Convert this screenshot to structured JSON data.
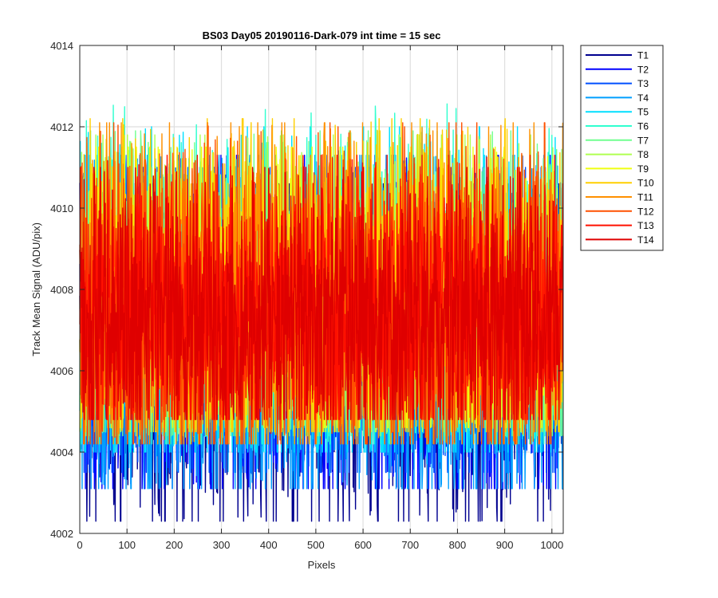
{
  "chart_data": {
    "type": "line",
    "title": "BS03 Day05 20190116-Dark-079 int time = 15 sec",
    "xlabel": "Pixels",
    "ylabel": "Track Mean Signal (ADU/pix)",
    "xlim": [
      0,
      1024
    ],
    "ylim": [
      4002,
      4014
    ],
    "x_ticks": [
      0,
      100,
      200,
      300,
      400,
      500,
      600,
      700,
      800,
      900,
      1000
    ],
    "y_ticks": [
      4002,
      4004,
      4006,
      4008,
      4010,
      4012,
      4014
    ],
    "grid": true,
    "legend_position": "outside-right",
    "n_points_per_series": 1024,
    "series": [
      {
        "name": "T1",
        "color": "#00008f",
        "mean": 4006.6,
        "min": 4002.3,
        "max": 4010.6
      },
      {
        "name": "T2",
        "color": "#0000ff",
        "mean": 4006.8,
        "min": 4003.1,
        "max": 4011.3
      },
      {
        "name": "T3",
        "color": "#0050ff",
        "mean": 4007.0,
        "min": 4003.5,
        "max": 4011.0
      },
      {
        "name": "T4",
        "color": "#009fff",
        "mean": 4007.2,
        "min": 4003.1,
        "max": 4011.3
      },
      {
        "name": "T5",
        "color": "#00dfff",
        "mean": 4007.3,
        "min": 4004.0,
        "max": 4012.0
      },
      {
        "name": "T6",
        "color": "#30ffcf",
        "mean": 4007.4,
        "min": 4004.2,
        "max": 4012.7
      },
      {
        "name": "T7",
        "color": "#70ff8f",
        "mean": 4007.5,
        "min": 4004.4,
        "max": 4011.9
      },
      {
        "name": "T8",
        "color": "#afff50",
        "mean": 4007.6,
        "min": 4004.5,
        "max": 4011.8
      },
      {
        "name": "T9",
        "color": "#efff10",
        "mean": 4007.7,
        "min": 4004.6,
        "max": 4011.5
      },
      {
        "name": "T10",
        "color": "#ffcf00",
        "mean": 4007.7,
        "min": 4004.5,
        "max": 4012.2
      },
      {
        "name": "T11",
        "color": "#ff9000",
        "mean": 4007.6,
        "min": 4004.2,
        "max": 4012.1
      },
      {
        "name": "T12",
        "color": "#ff5000",
        "mean": 4007.5,
        "min": 4004.2,
        "max": 4012.1
      },
      {
        "name": "T13",
        "color": "#ff1000",
        "mean": 4007.4,
        "min": 4004.8,
        "max": 4011.3
      },
      {
        "name": "T14",
        "color": "#df0000",
        "mean": 4007.3,
        "min": 4004.8,
        "max": 4011.0
      }
    ]
  }
}
